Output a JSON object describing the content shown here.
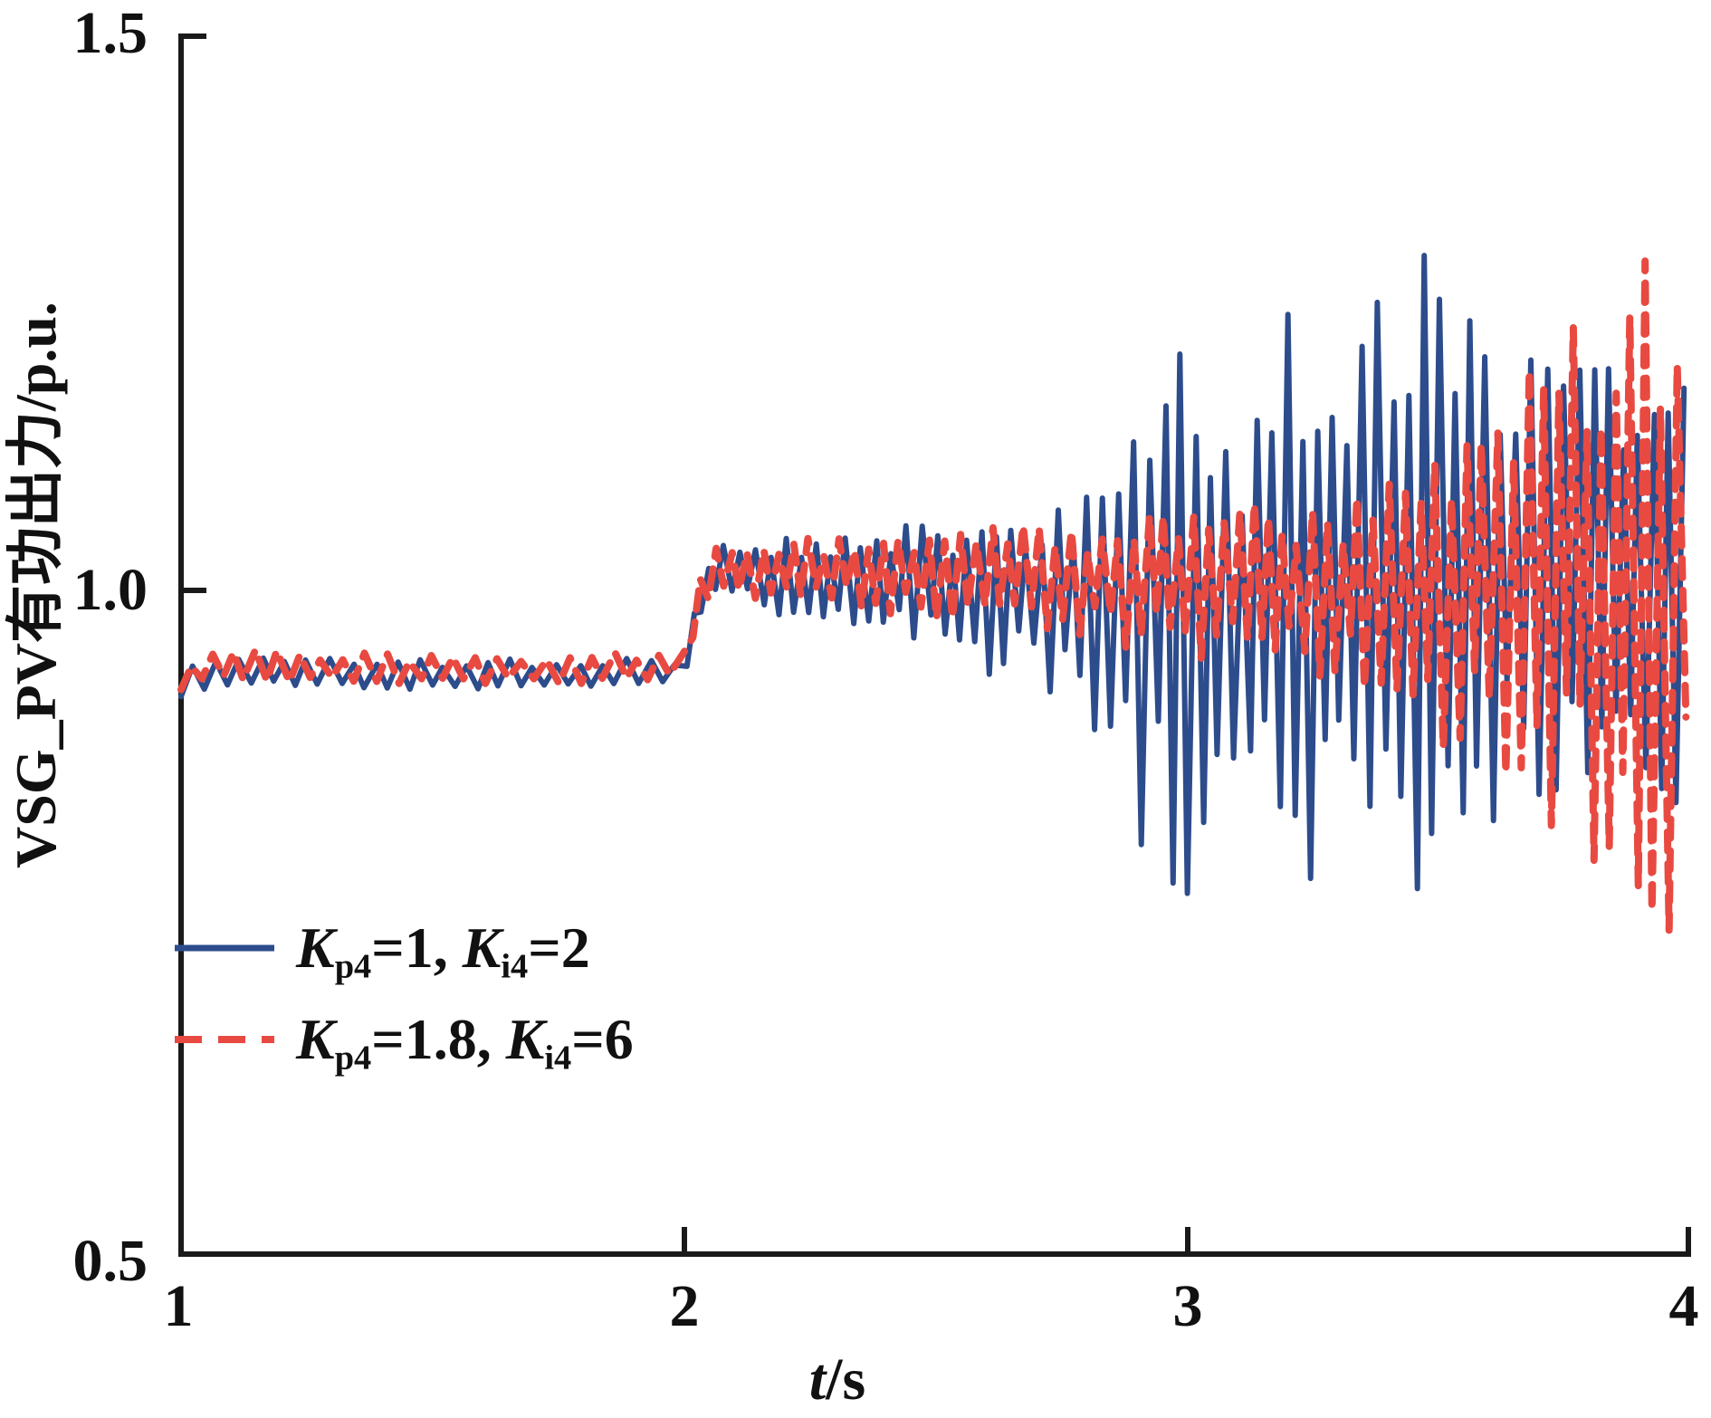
{
  "figure": {
    "background": "#ffffff",
    "axis_color": "#1a1a1a"
  },
  "chart_data": {
    "type": "line",
    "title": "",
    "xlabel": {
      "italic": "t",
      "rest": "/s"
    },
    "ylabel": "VSG_PV有功出力/p.u.",
    "xlim": [
      1,
      4
    ],
    "ylim": [
      0.5,
      1.5
    ],
    "xticks": [
      1,
      2,
      3,
      4
    ],
    "xticklabels": [
      "1",
      "2",
      "3",
      "4"
    ],
    "yticks": [
      0.5,
      1.0,
      1.5
    ],
    "yticklabels": [
      "0.5",
      "1.0",
      "1.5"
    ],
    "grid": false,
    "legend_position": "inside-lower-left",
    "series": [
      {
        "name": "Kp4=1, Ki4=2",
        "label_parts": {
          "k1": "K",
          "sub1": "p4",
          "mid": "=1, ",
          "k2": "K",
          "sub2": "i4",
          "tail": "=2"
        },
        "color": "#2d4c8c",
        "line_style": "solid",
        "line_width": 6,
        "dash": null,
        "seed": 11,
        "amplitude_randomness": [
          0.42,
          1.0
        ],
        "oscillation": [
          {
            "until": 2.0,
            "hz": 22
          },
          {
            "until": 4.05,
            "hz": 33
          }
        ],
        "envelope": [
          [
            1.0,
            0.918,
            0.932
          ],
          [
            1.04,
            0.924,
            0.956
          ],
          [
            1.1,
            0.926,
            0.952
          ],
          [
            1.3,
            0.925,
            0.95
          ],
          [
            1.6,
            0.924,
            0.948
          ],
          [
            1.95,
            0.926,
            0.95
          ],
          [
            2.0,
            0.93,
            0.95
          ],
          [
            2.03,
            0.98,
            1.01
          ],
          [
            2.07,
            1.0,
            1.042
          ],
          [
            2.12,
            0.988,
            1.04
          ],
          [
            2.2,
            0.98,
            1.048
          ],
          [
            2.35,
            0.968,
            1.052
          ],
          [
            2.5,
            0.95,
            1.062
          ],
          [
            2.65,
            0.93,
            1.072
          ],
          [
            2.78,
            0.905,
            1.085
          ],
          [
            2.85,
            0.85,
            1.105
          ],
          [
            2.89,
            0.8,
            1.275
          ],
          [
            2.93,
            0.81,
            1.15
          ],
          [
            2.98,
            0.77,
            1.23
          ],
          [
            3.04,
            0.745,
            1.215
          ],
          [
            3.1,
            0.8,
            1.15
          ],
          [
            3.16,
            0.785,
            1.265
          ],
          [
            3.22,
            0.77,
            1.24
          ],
          [
            3.28,
            0.785,
            1.19
          ],
          [
            3.34,
            0.8,
            1.27
          ],
          [
            3.4,
            0.775,
            1.31
          ],
          [
            3.46,
            0.76,
            1.325
          ],
          [
            3.53,
            0.795,
            1.27
          ],
          [
            3.59,
            0.78,
            1.295
          ],
          [
            3.65,
            0.815,
            1.23
          ],
          [
            3.71,
            0.79,
            1.255
          ],
          [
            3.76,
            0.78,
            1.3
          ],
          [
            3.82,
            0.815,
            1.225
          ],
          [
            3.87,
            0.8,
            1.185
          ],
          [
            3.92,
            0.79,
            1.245
          ],
          [
            3.97,
            0.815,
            1.235
          ],
          [
            4.0,
            0.8,
            1.22
          ]
        ]
      },
      {
        "name": "Kp4=1.8, Ki4=6",
        "label_parts": {
          "k1": "K",
          "sub1": "p4",
          "mid": "=1.8, ",
          "k2": "K",
          "sub2": "i4",
          "tail": "=6"
        },
        "color": "#e84a41",
        "line_style": "dashed",
        "line_width": 8,
        "dash": [
          21,
          14
        ],
        "seed": 29,
        "amplitude_randomness": [
          0.42,
          1.0
        ],
        "oscillation": [
          {
            "until": 2.0,
            "hz": 22
          },
          {
            "until": 4.05,
            "hz": 33
          }
        ],
        "envelope": [
          [
            1.0,
            0.922,
            0.936
          ],
          [
            1.04,
            0.928,
            0.958
          ],
          [
            1.1,
            0.93,
            0.956
          ],
          [
            1.3,
            0.929,
            0.954
          ],
          [
            1.6,
            0.928,
            0.952
          ],
          [
            1.95,
            0.93,
            0.954
          ],
          [
            2.0,
            0.934,
            0.954
          ],
          [
            2.03,
            0.984,
            1.014
          ],
          [
            2.07,
            1.002,
            1.044
          ],
          [
            2.12,
            0.992,
            1.044
          ],
          [
            2.2,
            0.99,
            1.046
          ],
          [
            2.35,
            0.985,
            1.05
          ],
          [
            2.5,
            0.978,
            1.054
          ],
          [
            2.65,
            0.972,
            1.058
          ],
          [
            2.8,
            0.962,
            1.062
          ],
          [
            2.95,
            0.952,
            1.068
          ],
          [
            3.1,
            0.94,
            1.076
          ],
          [
            3.25,
            0.928,
            1.085
          ],
          [
            3.4,
            0.905,
            1.1
          ],
          [
            3.5,
            0.882,
            1.14
          ],
          [
            3.58,
            0.862,
            1.2
          ],
          [
            3.66,
            0.838,
            1.225
          ],
          [
            3.73,
            0.805,
            1.262
          ],
          [
            3.8,
            0.765,
            1.28
          ],
          [
            3.86,
            0.738,
            1.252
          ],
          [
            3.92,
            0.718,
            1.308
          ],
          [
            3.97,
            0.752,
            1.282
          ],
          [
            4.0,
            0.765,
            1.262
          ]
        ]
      }
    ]
  }
}
